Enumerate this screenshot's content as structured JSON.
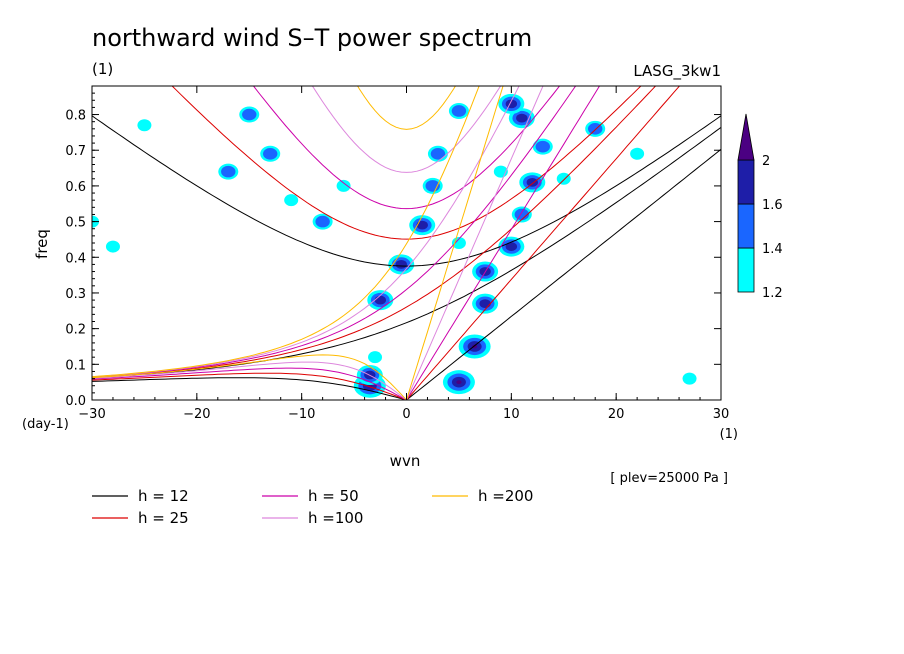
{
  "chart_data": {
    "type": "contour",
    "title": "northward wind S–T power spectrum",
    "subtitle_left": "(1)",
    "subtitle_right": "LASG_3kw1",
    "xlabel": "wvn",
    "ylabel": "freq",
    "x_unit": "(1)",
    "y_unit": "(day-1)",
    "note": "[ plev=25000 Pa ]",
    "xlim": [
      -30,
      30
    ],
    "ylim": [
      0,
      0.88
    ],
    "x_ticks": [
      -30,
      -20,
      -10,
      0,
      10,
      20,
      30
    ],
    "x_tick_labels": [
      "−30",
      "−20",
      "−10",
      "0",
      "10",
      "20",
      "30"
    ],
    "y_ticks": [
      0,
      0.1,
      0.2,
      0.3,
      0.4,
      0.5,
      0.6,
      0.7,
      0.8
    ],
    "y_tick_labels": [
      "0.0",
      "0.1",
      "0.2",
      "0.3",
      "0.4",
      "0.5",
      "0.6",
      "0.7",
      "0.8"
    ],
    "colorbar": {
      "levels": [
        1.2,
        1.4,
        1.6,
        2
      ],
      "labels": [
        "1.2",
        "1.4",
        "1.6",
        "2"
      ],
      "colors": [
        "#00ffff",
        "#1a66ff",
        "#1e1ea8",
        "#4b0082"
      ]
    },
    "dispersion_curves": [
      {
        "label": "h = 12",
        "h": 12,
        "color": "#000000"
      },
      {
        "label": "h = 25",
        "h": 25,
        "color": "#dd0000"
      },
      {
        "label": "h = 50",
        "h": 50,
        "color": "#cc00aa"
      },
      {
        "label": "h =100",
        "h": 100,
        "color": "#dd88dd"
      },
      {
        "label": "h =200",
        "h": 200,
        "color": "#ffbb00"
      }
    ],
    "contour_regions": [
      {
        "x": 5,
        "y": 0.05,
        "level": 2
      },
      {
        "x": 6.5,
        "y": 0.15,
        "level": 2
      },
      {
        "x": 7.5,
        "y": 0.27,
        "level": 1.6
      },
      {
        "x": 7.5,
        "y": 0.36,
        "level": 1.6
      },
      {
        "x": 10,
        "y": 0.43,
        "level": 1.6
      },
      {
        "x": 11,
        "y": 0.52,
        "level": 1.4
      },
      {
        "x": 12,
        "y": 0.61,
        "level": 1.6
      },
      {
        "x": 13,
        "y": 0.71,
        "level": 1.4
      },
      {
        "x": 11,
        "y": 0.79,
        "level": 1.6
      },
      {
        "x": 10,
        "y": 0.83,
        "level": 1.6
      },
      {
        "x": -3.5,
        "y": 0.04,
        "level": 2
      },
      {
        "x": -3.5,
        "y": 0.07,
        "level": 1.6
      },
      {
        "x": -2.5,
        "y": 0.28,
        "level": 1.6
      },
      {
        "x": -0.5,
        "y": 0.38,
        "level": 1.6
      },
      {
        "x": 1.5,
        "y": 0.49,
        "level": 1.6
      },
      {
        "x": 2.5,
        "y": 0.6,
        "level": 1.4
      },
      {
        "x": 3,
        "y": 0.69,
        "level": 1.4
      },
      {
        "x": 5,
        "y": 0.81,
        "level": 1.4
      },
      {
        "x": -15,
        "y": 0.8,
        "level": 1.4
      },
      {
        "x": -17,
        "y": 0.64,
        "level": 1.4
      },
      {
        "x": -13,
        "y": 0.69,
        "level": 1.4
      },
      {
        "x": -8,
        "y": 0.5,
        "level": 1.4
      },
      {
        "x": -11,
        "y": 0.56,
        "level": 1.2
      },
      {
        "x": -6,
        "y": 0.6,
        "level": 1.2
      },
      {
        "x": -25,
        "y": 0.77,
        "level": 1.2
      },
      {
        "x": -28,
        "y": 0.43,
        "level": 1.2
      },
      {
        "x": 5,
        "y": 0.44,
        "level": 1.2
      },
      {
        "x": -3,
        "y": 0.12,
        "level": 1.2
      },
      {
        "x": 15,
        "y": 0.62,
        "level": 1.2
      },
      {
        "x": 18,
        "y": 0.76,
        "level": 1.4
      },
      {
        "x": 9,
        "y": 0.64,
        "level": 1.2
      },
      {
        "x": 22,
        "y": 0.69,
        "level": 1.2
      },
      {
        "x": 27,
        "y": 0.06,
        "level": 1.2
      },
      {
        "x": -30,
        "y": 0.5,
        "level": 1.2
      }
    ]
  }
}
